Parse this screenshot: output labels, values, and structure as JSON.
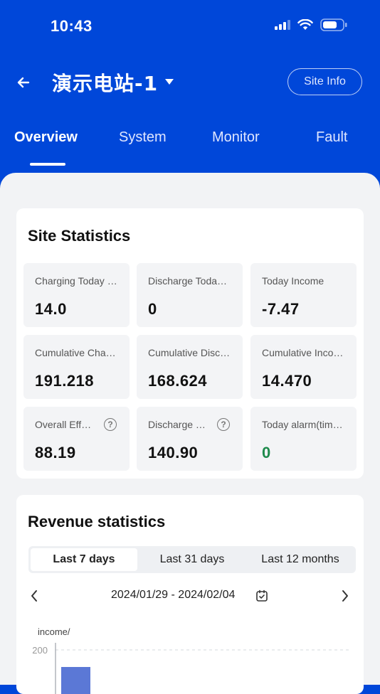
{
  "status": {
    "time": "10:43"
  },
  "header": {
    "title": "演示电站-1",
    "site_info": "Site Info",
    "tabs": [
      "Overview",
      "System",
      "Monitor",
      "Fault"
    ]
  },
  "stats": {
    "title": "Site Statistics",
    "items": [
      {
        "label": "Charging Today (kWh)",
        "value": "14.0"
      },
      {
        "label": "Discharge Today (kWh)",
        "value": "0"
      },
      {
        "label": "Today Income",
        "value": "-7.47"
      },
      {
        "label": "Cumulative Charge (MWh)",
        "value": "191.218"
      },
      {
        "label": "Cumulative Discharge (MWh)",
        "value": "168.624"
      },
      {
        "label": "Cumulative Income",
        "value": "14.470"
      },
      {
        "label": "Overall Efficiency (%)",
        "value": "88.19"
      },
      {
        "label": "Discharge capacity",
        "value": "140.90"
      },
      {
        "label": "Today alarm(times)",
        "value": "0"
      }
    ],
    "alarm_color": "#1e8a4c"
  },
  "revenue": {
    "title": "Revenue statistics",
    "periods": [
      "Last 7 days",
      "Last 31 days",
      "Last 12 months"
    ],
    "date_range": "2024/01/29 - 2024/02/04",
    "y_axis_label": "income/",
    "y_tick": "200"
  },
  "colors": {
    "brand": "#0047d9",
    "bar": "#5b78d6"
  }
}
